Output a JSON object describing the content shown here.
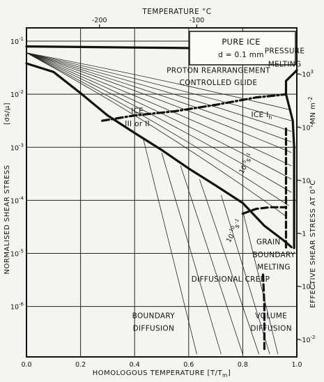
{
  "chart_data": {
    "type": "line",
    "title": "",
    "xlabel": "HOMOLOGOUS TEMPERATURE [T/T",
    "xlabel_sub": "m",
    "xlabel_tail": "]",
    "x_top_label": "TEMPERATURE °C",
    "ylabel": "NORMALISED SHEAR STRESS",
    "ylabel_unit": "[σs/μ]",
    "y_right_label": "EFFECTIVE SHEAR STRESS AT 0°C",
    "y_right_unit": "MN m",
    "y_right_unit_exp": "-2",
    "xlim": [
      0,
      1
    ],
    "ylim_log": [
      1e-06,
      0.1
    ],
    "y_scale": "log",
    "x_ticks": [
      "0.0",
      "0.2",
      "0.4",
      "0.6",
      "0.8",
      "1.0"
    ],
    "y_ticks": [
      {
        "base": "10",
        "exp": "-1",
        "v": -1
      },
      {
        "base": "10",
        "exp": "-2",
        "v": -2
      },
      {
        "base": "10",
        "exp": "-3",
        "v": -3
      },
      {
        "base": "10",
        "exp": "-4",
        "v": -4
      },
      {
        "base": "10",
        "exp": "-5",
        "v": -5
      },
      {
        "base": "10",
        "exp": "-6",
        "v": -6
      }
    ],
    "top_ticks": [
      {
        "label": "-200",
        "x": 0.27
      },
      {
        "label": "-100",
        "x": 0.63
      }
    ],
    "right_ticks": [
      {
        "label": "-10",
        "exp": "3",
        "v": -1.62
      },
      {
        "label": "-10",
        "exp": "2",
        "v": -2.62
      },
      {
        "label": "-10",
        "exp": "",
        "v": -3.62
      },
      {
        "label": "-1",
        "exp": "",
        "v": -4.62
      },
      {
        "label": "-10",
        "exp": "-1",
        "v": -5.62
      },
      {
        "label": "-10",
        "exp": "-2",
        "v": -6.62
      }
    ],
    "box": {
      "title": "PURE ICE",
      "subtitle": "d = 0.1 mm"
    },
    "regions": [
      {
        "text": "PRESSURE",
        "x": 0.955,
        "v": -1.23
      },
      {
        "text": "MELTING",
        "x": 0.955,
        "v": -1.48
      },
      {
        "text": "PROTON REARRANGEMENT",
        "x": 0.71,
        "v": -1.6
      },
      {
        "text": "CONTROLLED GLIDE",
        "x": 0.71,
        "v": -1.83
      },
      {
        "text": "ICE I",
        "x": 0.87,
        "v": -2.43,
        "sub": "h"
      },
      {
        "text": "ICE",
        "x": 0.41,
        "v": -2.36
      },
      {
        "text": "III or II",
        "x": 0.41,
        "v": -2.6
      },
      {
        "text": "GRAIN",
        "x": 0.895,
        "v": -4.83
      },
      {
        "text": "BOUNDARY",
        "x": 0.915,
        "v": -5.07
      },
      {
        "text": "MELTING",
        "x": 0.915,
        "v": -5.3
      },
      {
        "text": "DIFFUSIONAL CREEP",
        "x": 0.755,
        "v": -5.53
      },
      {
        "text": "BOUNDARY",
        "x": 0.47,
        "v": -6.22
      },
      {
        "text": "DIFFUSION",
        "x": 0.47,
        "v": -6.46
      },
      {
        "text": "VOLUME",
        "x": 0.905,
        "v": -6.22
      },
      {
        "text": "DIFFUSION",
        "x": 0.905,
        "v": -6.46
      }
    ],
    "strain_labels": [
      {
        "base": "10",
        "exp": "-5",
        "unit": "s",
        "unit_exp": "-1",
        "x": 0.82,
        "v": -3.33
      },
      {
        "base": "10",
        "exp": "-10",
        "unit": "s",
        "unit_exp": "-1",
        "x": 0.775,
        "v": -4.6
      }
    ],
    "series": [
      {
        "name": "",
        "style": "bold",
        "points": [
          [
            0,
            -1.1
          ],
          [
            0.2,
            -1.11
          ],
          [
            0.4,
            -1.12
          ],
          [
            0.6,
            -1.13
          ],
          [
            0.8,
            -1.14
          ],
          [
            0.93,
            -1.17
          ],
          [
            0.97,
            -1.23
          ],
          [
            1.0,
            -1.2
          ]
        ]
      },
      {
        "name": "",
        "style": "bold",
        "points": [
          [
            0,
            -1.42
          ],
          [
            0.1,
            -1.58
          ],
          [
            0.2,
            -1.98
          ],
          [
            0.3,
            -2.4
          ],
          [
            0.4,
            -2.73
          ],
          [
            0.5,
            -3.05
          ],
          [
            0.6,
            -3.4
          ],
          [
            0.7,
            -3.72
          ],
          [
            0.8,
            -4.05
          ],
          [
            0.88,
            -4.48
          ],
          [
            0.95,
            -4.75
          ],
          [
            0.98,
            -4.88
          ]
        ]
      },
      {
        "name": "",
        "style": "bold-dashdot",
        "points": [
          [
            0.28,
            -2.5
          ],
          [
            0.4,
            -2.4
          ],
          [
            0.55,
            -2.32
          ],
          [
            0.7,
            -2.2
          ],
          [
            0.85,
            -2.06
          ],
          [
            0.93,
            -2.02
          ],
          [
            0.96,
            -2.0
          ]
        ]
      },
      {
        "name": "",
        "style": "bold",
        "points": [
          [
            0.96,
            -2.0
          ],
          [
            0.96,
            -1.75
          ],
          [
            1.0,
            -1.55
          ]
        ]
      },
      {
        "name": "",
        "style": "bold",
        "points": [
          [
            0.96,
            -2.0
          ],
          [
            0.97,
            -2.2
          ],
          [
            0.985,
            -2.5
          ],
          [
            0.99,
            -3.0
          ],
          [
            0.99,
            -3.6
          ],
          [
            0.99,
            -4.2
          ],
          [
            0.99,
            -4.9
          ]
        ]
      },
      {
        "name": "",
        "style": "bold-dashed",
        "points": [
          [
            0.8,
            -4.25
          ],
          [
            0.85,
            -4.16
          ],
          [
            0.9,
            -4.13
          ],
          [
            0.96,
            -4.13
          ],
          [
            0.96,
            -4.9
          ]
        ]
      },
      {
        "name": "",
        "style": "bold-dashed",
        "points": [
          [
            0.96,
            -2.65
          ],
          [
            0.96,
            -4.13
          ]
        ]
      },
      {
        "name": "",
        "style": "bold-dashed",
        "points": [
          [
            0.875,
            -5.4
          ],
          [
            0.88,
            -6.0
          ],
          [
            0.88,
            -6.8
          ]
        ]
      }
    ],
    "thin_contours": [
      {
        "x_end": 0.98,
        "v_end": -2.3
      },
      {
        "x_end": 0.98,
        "v_end": -2.5
      },
      {
        "x_end": 0.98,
        "v_end": -2.7
      },
      {
        "x_end": 0.98,
        "v_end": -2.9
      },
      {
        "x_end": 0.98,
        "v_end": -3.1
      },
      {
        "x_end": 0.98,
        "v_end": -3.35
      },
      {
        "x_end": 0.98,
        "v_end": -3.6
      },
      {
        "x_end": 0.98,
        "v_end": -3.85
      },
      {
        "x_end": 0.97,
        "v_end": -4.1
      },
      {
        "x_end": 0.96,
        "v_end": -4.3
      }
    ],
    "steep_lines": [
      {
        "x0": 0.43,
        "v0": -2.8,
        "x1": 0.63,
        "v1": -6.9
      },
      {
        "x0": 0.5,
        "v0": -3.1,
        "x1": 0.72,
        "v1": -6.9
      },
      {
        "x0": 0.57,
        "v0": -3.35,
        "x1": 0.8,
        "v1": -6.9
      },
      {
        "x0": 0.64,
        "v0": -3.6,
        "x1": 0.86,
        "v1": -6.9
      },
      {
        "x0": 0.72,
        "v0": -3.9,
        "x1": 0.9,
        "v1": -6.9
      },
      {
        "x0": 0.8,
        "v0": -4.2,
        "x1": 0.93,
        "v1": -6.9
      }
    ],
    "grid": true
  }
}
